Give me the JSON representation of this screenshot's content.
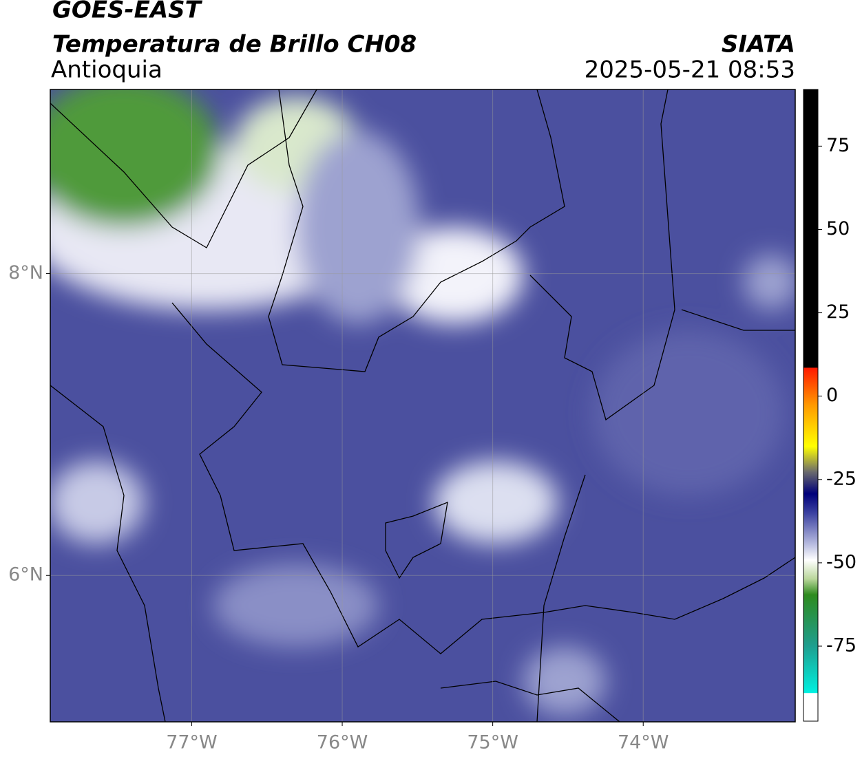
{
  "header": {
    "title": "GOES-EAST",
    "subtitle": "Temperatura de Brillo CH08",
    "region": "Antioquia",
    "source": "SIATA",
    "timestamp": "2025-05-21 08:53"
  },
  "map": {
    "xlim": [
      -77.94,
      -72.99
    ],
    "ylim": [
      5.03,
      9.22
    ],
    "xticks": [
      {
        "value": -77,
        "label": "77°W"
      },
      {
        "value": -76,
        "label": "76°W"
      },
      {
        "value": -75,
        "label": "75°W"
      },
      {
        "value": -74,
        "label": "74°W"
      }
    ],
    "yticks": [
      {
        "value": 6,
        "label": "6°N"
      },
      {
        "value": 8,
        "label": "8°N"
      }
    ],
    "grid": true
  },
  "colorbar": {
    "lim": [
      -97.5,
      92
    ],
    "ticks": [
      -75,
      -50,
      -25,
      0,
      25,
      50,
      75
    ]
  }
}
